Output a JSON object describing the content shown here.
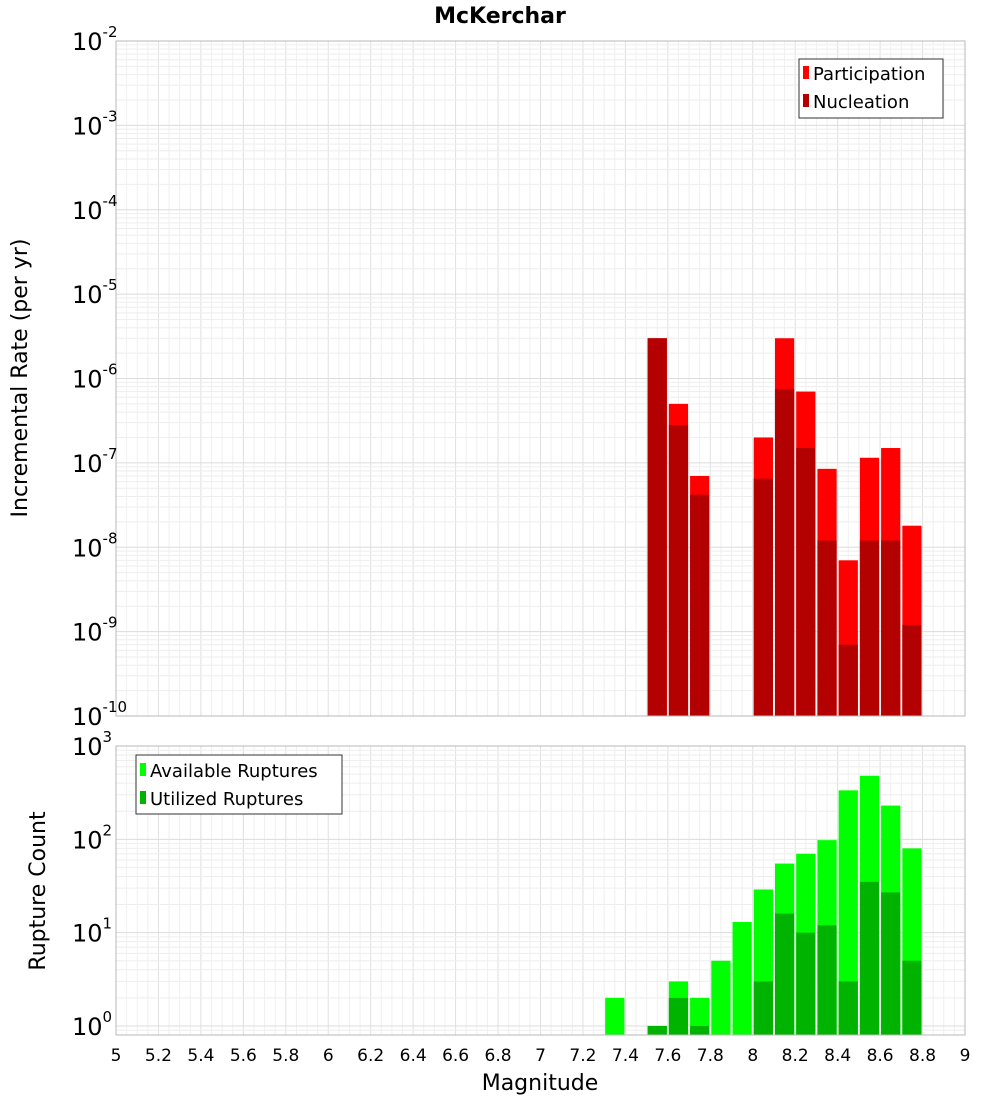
{
  "chart_data": [
    {
      "type": "bar",
      "title": "McKerchar",
      "ylabel": "Incremental Rate (per yr)",
      "xlabel": "",
      "yscale": "log",
      "ylim": [
        1e-10,
        0.01
      ],
      "xlim": [
        5,
        9
      ],
      "grid": true,
      "legend": "top-right",
      "bar_width": 0.1,
      "ytick_labels": [
        {
          "base": "10",
          "exp": "-10",
          "value": 1e-10
        },
        {
          "base": "10",
          "exp": "-9",
          "value": 1e-09
        },
        {
          "base": "10",
          "exp": "-8",
          "value": 1e-08
        },
        {
          "base": "10",
          "exp": "-7",
          "value": 1e-07
        },
        {
          "base": "10",
          "exp": "-6",
          "value": 1e-06
        },
        {
          "base": "10",
          "exp": "-5",
          "value": 1e-05
        },
        {
          "base": "10",
          "exp": "-4",
          "value": 0.0001
        },
        {
          "base": "10",
          "exp": "-3",
          "value": 0.001
        },
        {
          "base": "10",
          "exp": "-2",
          "value": 0.01
        }
      ],
      "series": [
        {
          "name": "Participation",
          "color": "#ff0000",
          "x": [
            7.55,
            7.65,
            7.75,
            8.05,
            8.15,
            8.25,
            8.35,
            8.45,
            8.55,
            8.65,
            8.75
          ],
          "values": [
            3e-06,
            5e-07,
            7e-08,
            2e-07,
            3e-06,
            7e-07,
            8.5e-08,
            7e-09,
            1.15e-07,
            1.5e-07,
            1.8e-08
          ]
        },
        {
          "name": "Nucleation",
          "color": "#b30000",
          "x": [
            7.55,
            7.65,
            7.75,
            8.05,
            8.15,
            8.25,
            8.35,
            8.45,
            8.55,
            8.65,
            8.75
          ],
          "values": [
            3e-06,
            2.8e-07,
            4.2e-08,
            6.5e-08,
            7.5e-07,
            1.5e-07,
            1.2e-08,
            7e-10,
            1.2e-08,
            1.2e-08,
            1.2e-09
          ]
        }
      ]
    },
    {
      "type": "bar",
      "title": "",
      "ylabel": "Rupture Count",
      "xlabel": "Magnitude",
      "yscale": "log",
      "ylim": [
        0.8,
        1000
      ],
      "xlim": [
        5,
        9
      ],
      "grid": true,
      "legend": "top-left",
      "bar_width": 0.1,
      "ytick_labels": [
        {
          "base": "10",
          "exp": "0",
          "value": 1
        },
        {
          "base": "10",
          "exp": "1",
          "value": 10
        },
        {
          "base": "10",
          "exp": "2",
          "value": 100
        },
        {
          "base": "10",
          "exp": "3",
          "value": 1000
        }
      ],
      "xtick_labels": [
        "5",
        "5.2",
        "5.4",
        "5.6",
        "5.8",
        "6",
        "6.2",
        "6.4",
        "6.6",
        "6.8",
        "7",
        "7.2",
        "7.4",
        "7.6",
        "7.8",
        "8",
        "8.2",
        "8.4",
        "8.6",
        "8.8",
        "9"
      ],
      "xtick_values": [
        5,
        5.2,
        5.4,
        5.6,
        5.8,
        6,
        6.2,
        6.4,
        6.6,
        6.8,
        7,
        7.2,
        7.4,
        7.6,
        7.8,
        8,
        8.2,
        8.4,
        8.6,
        8.8,
        9
      ],
      "series": [
        {
          "name": "Available Ruptures",
          "color": "#00ff00",
          "x": [
            7.35,
            7.55,
            7.65,
            7.75,
            7.85,
            7.95,
            8.05,
            8.15,
            8.25,
            8.35,
            8.45,
            8.55,
            8.65,
            8.75
          ],
          "values": [
            2,
            1,
            3,
            2,
            5,
            13,
            29,
            55,
            70,
            98,
            335,
            480,
            230,
            80
          ]
        },
        {
          "name": "Utilized Ruptures",
          "color": "#00b300",
          "x": [
            7.55,
            7.65,
            7.75,
            8.05,
            8.15,
            8.25,
            8.35,
            8.45,
            8.55,
            8.65,
            8.75
          ],
          "values": [
            1,
            2,
            1,
            3,
            16,
            10,
            12,
            3,
            35,
            27,
            5
          ]
        }
      ]
    }
  ]
}
